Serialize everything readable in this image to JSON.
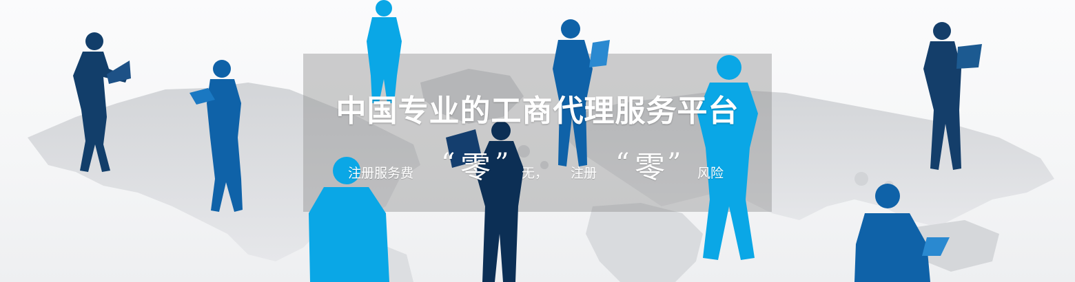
{
  "banner": {
    "headline": "中国专业的工商代理服务平台",
    "subline": {
      "part1": "注册服务费",
      "open_quote_1": "“",
      "zero_1": "零",
      "close_quote_1": "”",
      "part2": "无，",
      "part3": "注册",
      "open_quote_2": "“",
      "zero_2": "零",
      "close_quote_2": "”",
      "part4": "风险"
    },
    "colors": {
      "light_blue": "#0aa7e6",
      "mid_blue": "#0f6bb0",
      "dark_blue": "#0c3a63",
      "map_gray": "#c9cbcf",
      "overlay": "#8c8c8c"
    }
  }
}
